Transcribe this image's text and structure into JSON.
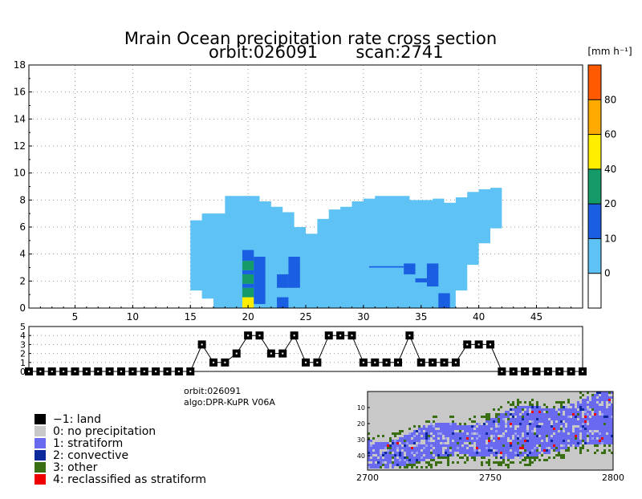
{
  "chart_data": [
    {
      "type": "heatmap",
      "name": "cross-section",
      "title": "Mrain Ocean precipitation rate cross section",
      "subtitle_orbit": "orbit:026091",
      "subtitle_scan": "scan:2741",
      "colorbar_unit": "[mm h⁻¹]",
      "xlim": [
        1,
        49
      ],
      "ylim": [
        0,
        18
      ],
      "x_ticks": [
        "5",
        "10",
        "15",
        "20",
        "25",
        "30",
        "35",
        "40",
        "45"
      ],
      "y_ticks": [
        "0",
        "2",
        "4",
        "6",
        "8",
        "10",
        "12",
        "14",
        "16",
        "18"
      ],
      "grid": true,
      "colorbar_levels": [
        0,
        10,
        20,
        40,
        60,
        80
      ],
      "colorbar_labels": [
        "0",
        "10",
        "20",
        "40",
        "60",
        "80"
      ],
      "colorbar_colors": [
        "#ffffff",
        "#5ec2f4",
        "#1a5ee2",
        "#159a6a",
        "#ffee00",
        "#ffaa00",
        "#ff5a00"
      ],
      "rain_top_km": [
        [
          14.5,
          4.7
        ],
        [
          15.5,
          6.5
        ],
        [
          16.5,
          7.0
        ],
        [
          17.5,
          7.0
        ],
        [
          18.5,
          8.3
        ],
        [
          19.5,
          8.3
        ],
        [
          20.5,
          8.3
        ],
        [
          21.5,
          7.9
        ],
        [
          22.5,
          7.5
        ],
        [
          23.5,
          7.1
        ],
        [
          24.5,
          6.0
        ],
        [
          25.5,
          5.5
        ],
        [
          26.5,
          6.6
        ],
        [
          27.5,
          7.3
        ],
        [
          28.5,
          7.5
        ],
        [
          29.5,
          7.9
        ],
        [
          30.5,
          8.1
        ],
        [
          31.5,
          8.3
        ],
        [
          32.5,
          8.3
        ],
        [
          33.5,
          8.3
        ],
        [
          34.5,
          8.0
        ],
        [
          35.5,
          8.0
        ],
        [
          36.5,
          8.1
        ],
        [
          37.5,
          7.8
        ],
        [
          38.5,
          8.2
        ],
        [
          39.5,
          8.6
        ],
        [
          40.5,
          8.8
        ],
        [
          41.5,
          8.9
        ]
      ],
      "rain_bottom_km": [
        [
          14.5,
          4.7
        ],
        [
          15.5,
          1.3
        ],
        [
          16.5,
          0.7
        ],
        [
          17.5,
          0.0
        ],
        [
          18.5,
          0.0
        ],
        [
          19.5,
          0.0
        ],
        [
          20.5,
          0.0
        ],
        [
          21.5,
          0.0
        ],
        [
          22.5,
          0.0
        ],
        [
          23.5,
          0.0
        ],
        [
          24.5,
          0.0
        ],
        [
          25.5,
          0.0
        ],
        [
          26.5,
          0.0
        ],
        [
          27.5,
          0.0
        ],
        [
          28.5,
          0.0
        ],
        [
          29.5,
          0.0
        ],
        [
          30.5,
          0.0
        ],
        [
          31.5,
          0.0
        ],
        [
          32.5,
          0.0
        ],
        [
          33.5,
          0.0
        ],
        [
          34.5,
          0.0
        ],
        [
          35.5,
          0.0
        ],
        [
          36.5,
          0.0
        ],
        [
          37.5,
          0.0
        ],
        [
          38.5,
          1.3
        ],
        [
          39.5,
          3.2
        ],
        [
          40.5,
          4.8
        ],
        [
          41.5,
          5.9
        ]
      ],
      "cells": [
        {
          "x0": 19.5,
          "x1": 20.5,
          "y0": 0.0,
          "y1": 0.8,
          "level": 4
        },
        {
          "x0": 19.5,
          "x1": 20.5,
          "y0": 0.8,
          "y1": 1.5,
          "level": 3
        },
        {
          "x0": 19.5,
          "x1": 20.5,
          "y0": 1.5,
          "y1": 1.8,
          "level": 2
        },
        {
          "x0": 19.5,
          "x1": 20.5,
          "y0": 1.8,
          "y1": 2.5,
          "level": 3
        },
        {
          "x0": 19.5,
          "x1": 20.5,
          "y0": 2.5,
          "y1": 2.8,
          "level": 2
        },
        {
          "x0": 19.5,
          "x1": 20.5,
          "y0": 2.8,
          "y1": 3.5,
          "level": 3
        },
        {
          "x0": 19.5,
          "x1": 20.5,
          "y0": 3.5,
          "y1": 4.3,
          "level": 2
        },
        {
          "x0": 20.5,
          "x1": 21.5,
          "y0": 0.3,
          "y1": 3.8,
          "level": 2
        },
        {
          "x0": 22.5,
          "x1": 23.5,
          "y0": 0.0,
          "y1": 0.8,
          "level": 2
        },
        {
          "x0": 22.5,
          "x1": 23.5,
          "y0": 1.5,
          "y1": 2.5,
          "level": 2
        },
        {
          "x0": 23.5,
          "x1": 24.5,
          "y0": 1.5,
          "y1": 3.8,
          "level": 2
        },
        {
          "x0": 30.5,
          "x1": 33.5,
          "y0": 3.0,
          "y1": 3.1,
          "level": 2
        },
        {
          "x0": 33.5,
          "x1": 34.5,
          "y0": 2.5,
          "y1": 3.3,
          "level": 2
        },
        {
          "x0": 34.5,
          "x1": 35.5,
          "y0": 1.9,
          "y1": 2.2,
          "level": 2
        },
        {
          "x0": 35.5,
          "x1": 36.5,
          "y0": 1.6,
          "y1": 3.3,
          "level": 2
        },
        {
          "x0": 36.5,
          "x1": 37.5,
          "y0": 0.0,
          "y1": 1.1,
          "level": 2
        }
      ]
    },
    {
      "type": "line",
      "name": "rain-type-strip",
      "ylim": [
        0,
        5
      ],
      "y_ticks": [
        "0",
        "1",
        "2",
        "3",
        "4",
        "5"
      ],
      "x": [
        1,
        2,
        3,
        4,
        5,
        6,
        7,
        8,
        9,
        10,
        11,
        12,
        13,
        14,
        15,
        16,
        17,
        18,
        19,
        20,
        21,
        22,
        23,
        24,
        25,
        26,
        27,
        28,
        29,
        30,
        31,
        32,
        33,
        34,
        35,
        36,
        37,
        38,
        39,
        40,
        41,
        42,
        43,
        44,
        45,
        46,
        47,
        48,
        49
      ],
      "values": [
        0,
        0,
        0,
        0,
        0,
        0,
        0,
        0,
        0,
        0,
        0,
        0,
        0,
        0,
        0,
        3,
        1,
        1,
        2,
        4,
        4,
        2,
        2,
        4,
        1,
        1,
        4,
        4,
        4,
        1,
        1,
        1,
        1,
        4,
        1,
        1,
        1,
        1,
        3,
        3,
        3,
        0,
        0,
        0,
        0,
        0,
        0,
        0,
        0
      ]
    },
    {
      "type": "heatmap",
      "name": "overview-map",
      "x_ticks": [
        "2700",
        "2750",
        "2800"
      ],
      "y_ticks": [
        "10",
        "20",
        "30",
        "40"
      ],
      "categories": [
        "no precipitation",
        "stratiform",
        "convective",
        "other",
        "reclassified as stratiform"
      ]
    }
  ],
  "info": {
    "orbit": "orbit:026091",
    "algo": "algo:DPR-KuPR V06A"
  },
  "legend": [
    {
      "label": "−1: land",
      "color": "#000000"
    },
    {
      "label": "0: no precipitation",
      "color": "#c8c8c8"
    },
    {
      "label": "1: stratiform",
      "color": "#6a6af0"
    },
    {
      "label": "2: convective",
      "color": "#0d2a9c"
    },
    {
      "label": "3: other",
      "color": "#3a6e12"
    },
    {
      "label": "4: reclassified as stratiform",
      "color": "#ee0000"
    }
  ]
}
